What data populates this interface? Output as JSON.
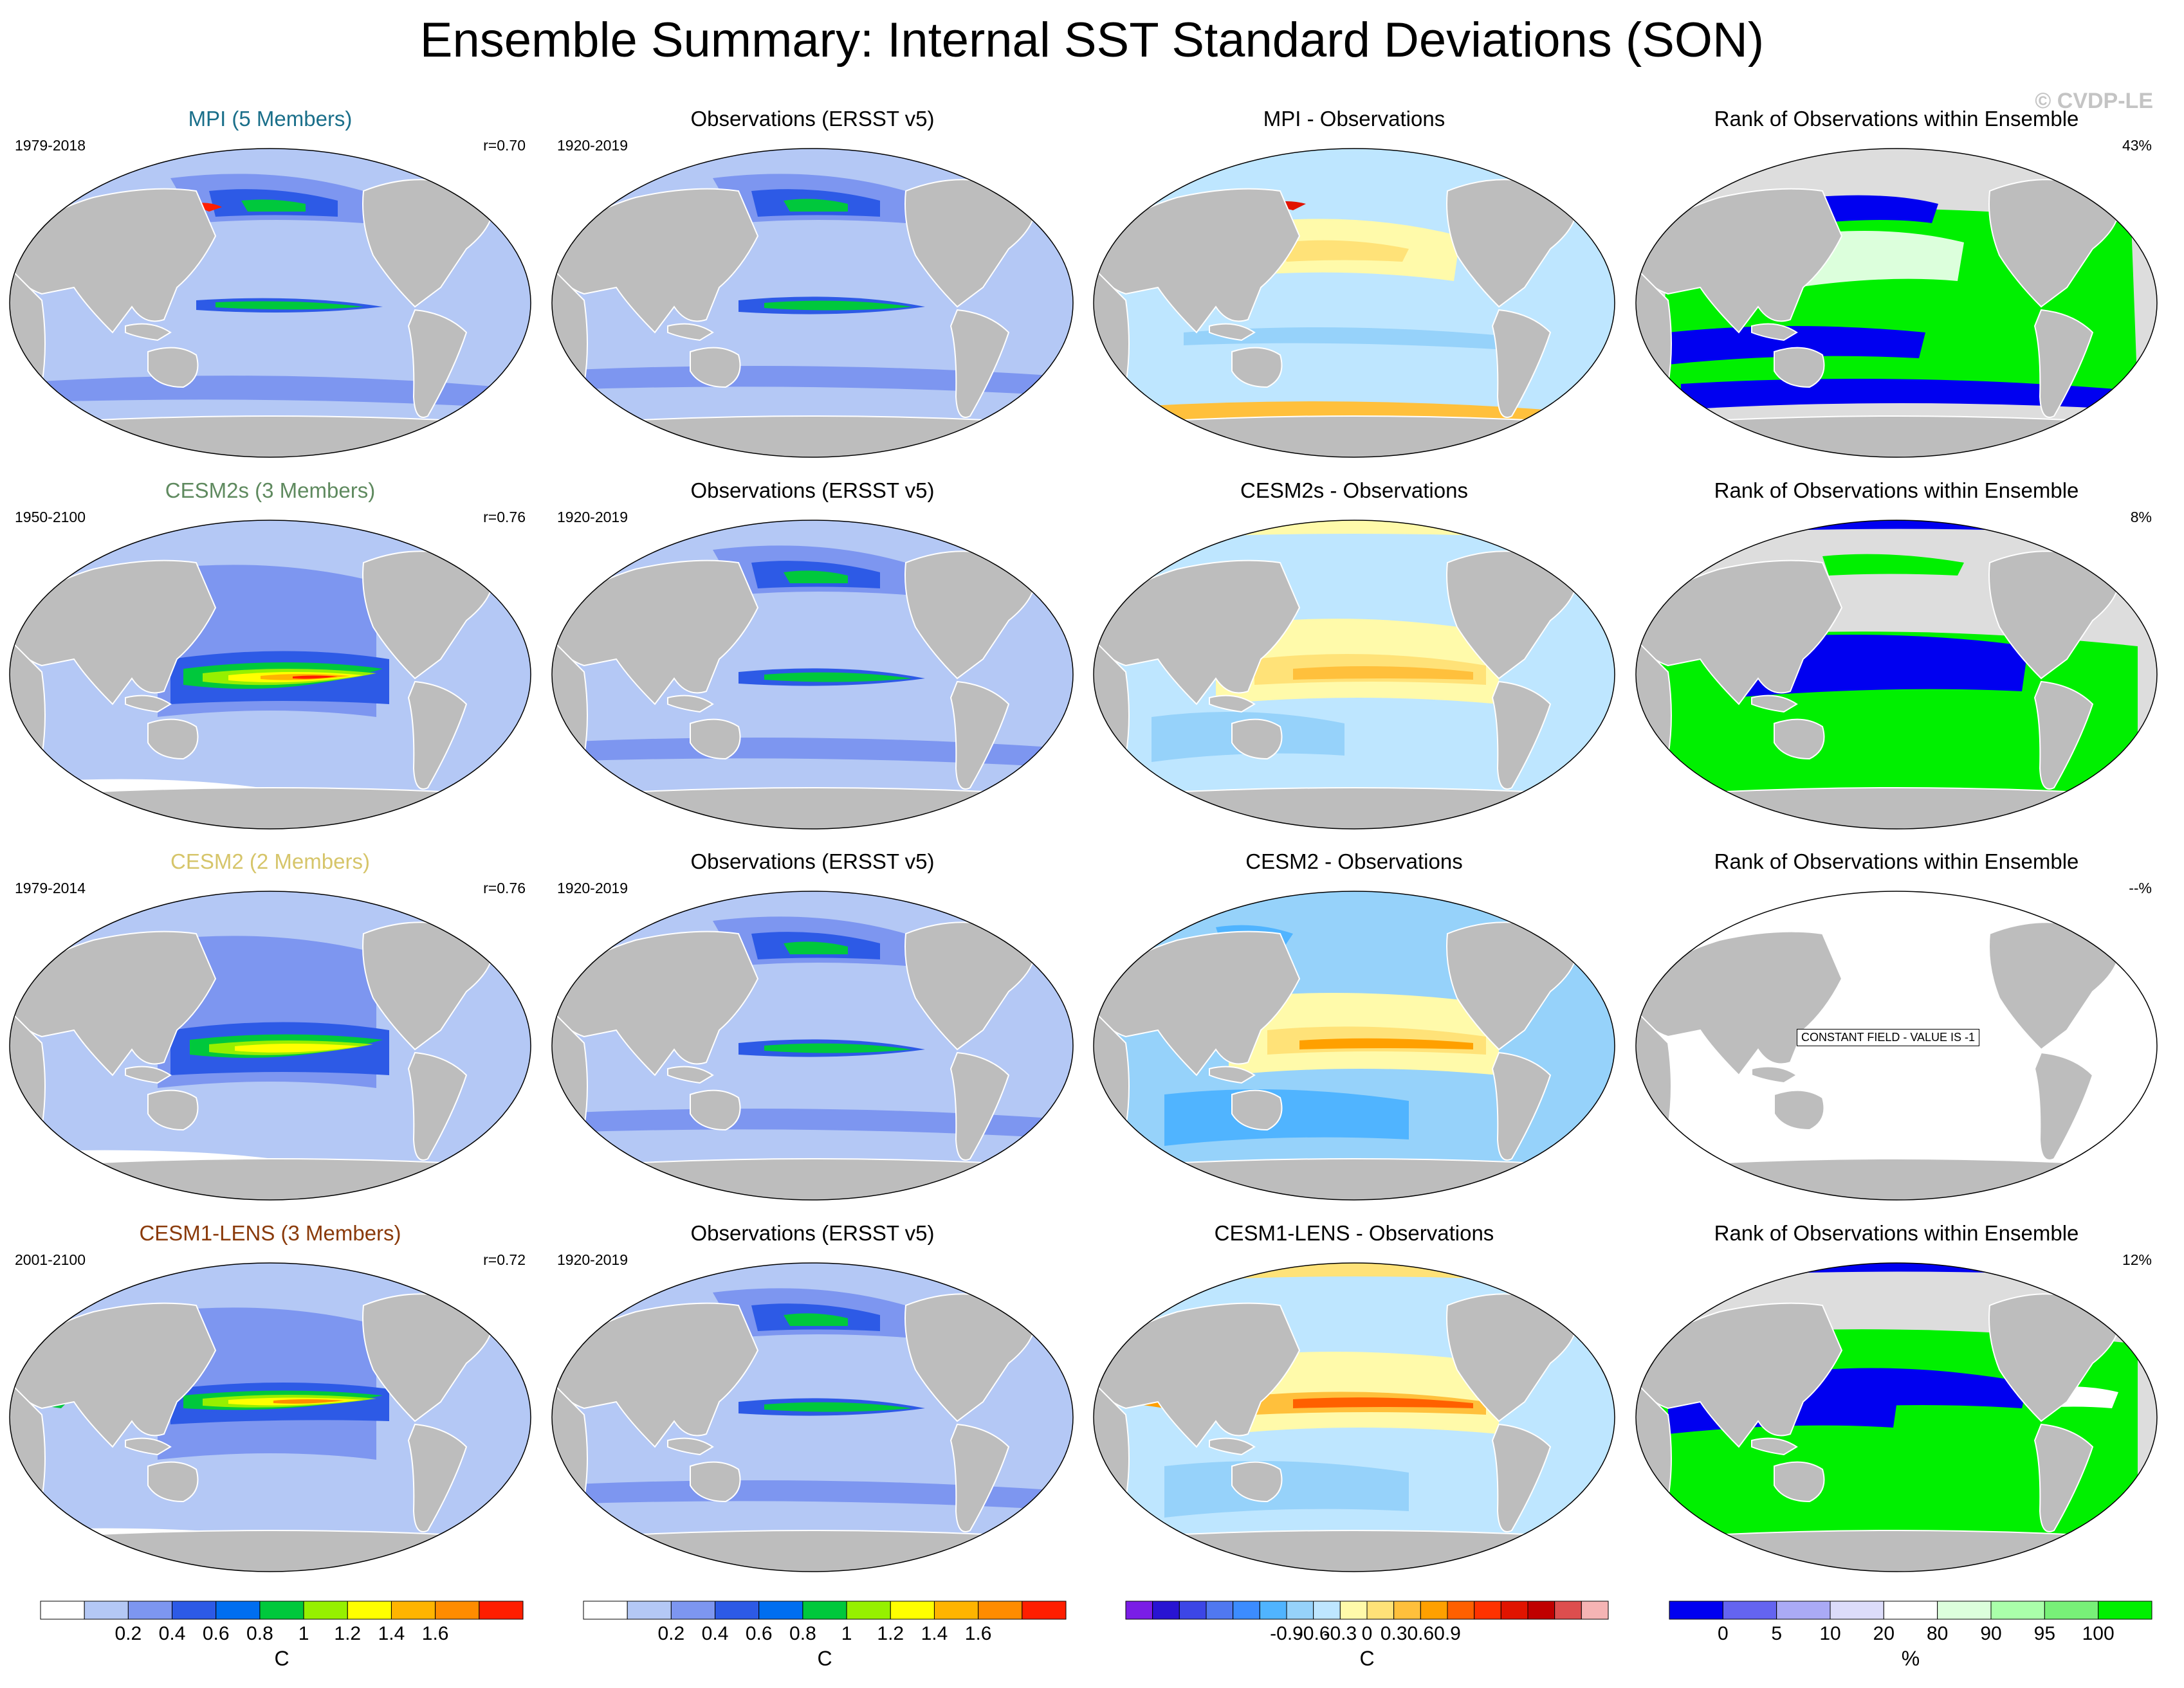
{
  "title": "Ensemble Summary: Internal SST Standard Deviations (SON)",
  "watermark": "© CVDP-LE",
  "rows": [
    {
      "model": {
        "title": "MPI (5 Members)",
        "title_color": "#1a6f8a",
        "period": "1979-2018",
        "corr": "r=0.70"
      },
      "obs": {
        "title": "Observations (ERSST v5)",
        "period": "1920-2019"
      },
      "diff": {
        "title": "MPI - Observations"
      },
      "rank": {
        "title": "Rank of Observations within Ensemble",
        "value": "43%"
      }
    },
    {
      "model": {
        "title": "CESM2s (3 Members)",
        "title_color": "#5f8a5f",
        "period": "1950-2100",
        "corr": "r=0.76"
      },
      "obs": {
        "title": "Observations (ERSST v5)",
        "period": "1920-2019"
      },
      "diff": {
        "title": "CESM2s - Observations"
      },
      "rank": {
        "title": "Rank of Observations within Ensemble",
        "value": "8%"
      }
    },
    {
      "model": {
        "title": "CESM2 (2 Members)",
        "title_color": "#d6c56a",
        "period": "1979-2014",
        "corr": "r=0.76"
      },
      "obs": {
        "title": "Observations (ERSST v5)",
        "period": "1920-2019"
      },
      "diff": {
        "title": "CESM2 - Observations"
      },
      "rank": {
        "title": "Rank of Observations within Ensemble",
        "value": "--%",
        "note": "CONSTANT FIELD - VALUE IS -1"
      }
    },
    {
      "model": {
        "title": "CESM1-LENS (3 Members)",
        "title_color": "#8a3a0a",
        "period": "2001-2100",
        "corr": "r=0.72"
      },
      "obs": {
        "title": "Observations (ERSST v5)",
        "period": "1920-2019"
      },
      "diff": {
        "title": "CESM1-LENS - Observations"
      },
      "rank": {
        "title": "Rank of Observations within Ensemble",
        "value": "12%"
      }
    }
  ],
  "colorbars": [
    {
      "name": "model-colorbar",
      "unit": "C",
      "colors": [
        "#ffffff",
        "#b4c8f5",
        "#7d96f0",
        "#2d5ae6",
        "#006ef0",
        "#00c83c",
        "#96f000",
        "#ffff00",
        "#ffb400",
        "#ff8c00",
        "#ff1e00"
      ],
      "labels": [
        "0.2",
        "0.4",
        "0.6",
        "0.8",
        "1",
        "1.2",
        "1.4",
        "1.6"
      ]
    },
    {
      "name": "obs-colorbar",
      "unit": "C",
      "colors": [
        "#ffffff",
        "#b4c8f5",
        "#7d96f0",
        "#2d5ae6",
        "#006ef0",
        "#00c83c",
        "#96f000",
        "#ffff00",
        "#ffb400",
        "#ff8c00",
        "#ff1e00"
      ],
      "labels": [
        "0.2",
        "0.4",
        "0.6",
        "0.8",
        "1",
        "1.2",
        "1.4",
        "1.6"
      ]
    },
    {
      "name": "diff-colorbar",
      "unit": "C",
      "colors": [
        "#7a1de6",
        "#2814d2",
        "#3c46e6",
        "#5078f0",
        "#3c8cff",
        "#50b4ff",
        "#96d2fa",
        "#bee6ff",
        "#fffaaa",
        "#ffe278",
        "#ffc03c",
        "#ffa000",
        "#ff6000",
        "#ff3200",
        "#e11400",
        "#c00000",
        "#dd4e4e",
        "#f5b4b4"
      ],
      "labels": [
        "-0.9",
        "-0.6",
        "-0.3",
        "0",
        "0.3",
        "0.6",
        "0.9"
      ]
    },
    {
      "name": "rank-colorbar",
      "unit": "%",
      "colors": [
        "#0000f0",
        "#6464f0",
        "#aaaaf5",
        "#dcdcfa",
        "#ffffff",
        "#dcffdc",
        "#aaffaa",
        "#78f078",
        "#00f000"
      ],
      "labels": [
        "0",
        "5",
        "10",
        "20",
        "80",
        "90",
        "95",
        "100"
      ]
    }
  ]
}
